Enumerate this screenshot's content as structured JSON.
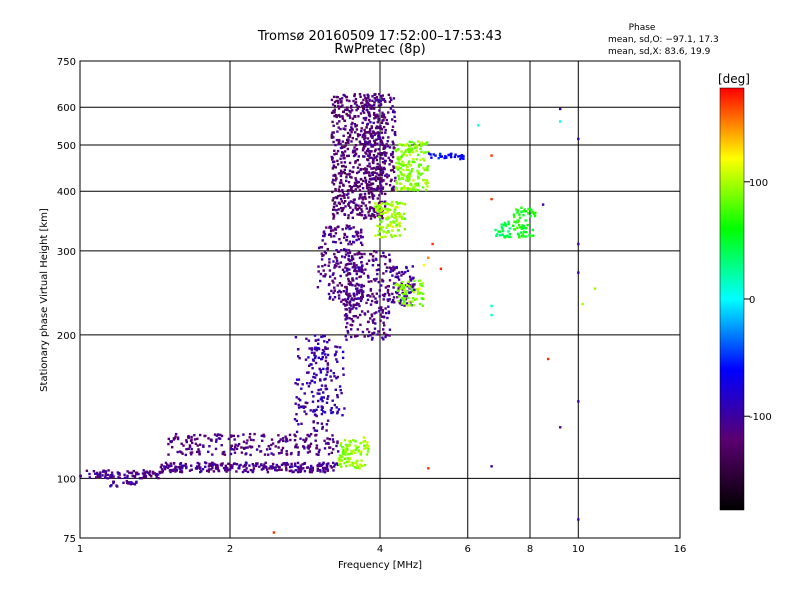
{
  "chart_data": {
    "type": "scatter",
    "title": "Tromsø 20160509 17:52:00–17:53:43",
    "subtitle": "RwPretec (8p)",
    "xlabel": "Frequency [MHz]",
    "ylabel": "Stationary phase Virtual Height [km]",
    "x_scale": "log",
    "y_scale": "log",
    "xlim": [
      1,
      16
    ],
    "ylim": [
      75,
      750
    ],
    "x_ticks": [
      1,
      2,
      4,
      6,
      8,
      10,
      16
    ],
    "y_ticks": [
      75,
      100,
      200,
      300,
      400,
      500,
      600,
      750
    ],
    "grid": true,
    "stats": {
      "heading": "Phase",
      "line_o": "mean, sd,O: −97.1, 17.3",
      "line_x": "mean, sd,X:  83.6, 19.9"
    },
    "colorbar": {
      "label": "[deg]",
      "range": [
        -180,
        180
      ],
      "ticks": [
        100,
        0,
        -100
      ],
      "colors": [
        "#000000",
        "#5a0070",
        "#0000ff",
        "#00ffff",
        "#00ff00",
        "#ffff00",
        "#ff0000"
      ]
    },
    "clusters": [
      {
        "desc": "low trace",
        "x": [
          1.0,
          1.45
        ],
        "y": [
          100,
          104
        ],
        "phase": -110,
        "n": 90
      },
      {
        "desc": "low trace tail",
        "x": [
          1.15,
          1.3
        ],
        "y": [
          96,
          99
        ],
        "phase": -105,
        "n": 20
      },
      {
        "desc": "base rise",
        "x": [
          1.45,
          3.3
        ],
        "y": [
          103,
          108
        ],
        "phase": -108,
        "n": 260
      },
      {
        "desc": "second layer",
        "x": [
          1.5,
          3.3
        ],
        "y": [
          112,
          124
        ],
        "phase": -112,
        "n": 220
      },
      {
        "desc": "oblique rise A",
        "x": [
          2.7,
          3.2
        ],
        "y": [
          125,
          200
        ],
        "phase": -100,
        "n": 120
      },
      {
        "desc": "oblique rise B",
        "x": [
          2.9,
          3.4
        ],
        "y": [
          135,
          190
        ],
        "phase": -95,
        "n": 80
      },
      {
        "desc": "F layer cusp",
        "x": [
          3.0,
          3.7
        ],
        "y": [
          230,
          340
        ],
        "phase": -110,
        "n": 200
      },
      {
        "desc": "F layer wall",
        "x": [
          3.2,
          4.1
        ],
        "y": [
          350,
          640
        ],
        "phase": -120,
        "n": 600
      },
      {
        "desc": "F mid band",
        "x": [
          3.4,
          4.2
        ],
        "y": [
          195,
          300
        ],
        "phase": -112,
        "n": 260
      },
      {
        "desc": "F upper wall",
        "x": [
          3.7,
          4.3
        ],
        "y": [
          400,
          640
        ],
        "phase": -112,
        "n": 200
      },
      {
        "desc": "extra X mid",
        "x": [
          4.2,
          4.7
        ],
        "y": [
          230,
          280
        ],
        "phase": -105,
        "n": 80
      },
      {
        "desc": "X low blob",
        "x": [
          3.3,
          3.8
        ],
        "y": [
          105,
          122
        ],
        "phase": 95,
        "n": 90
      },
      {
        "desc": "X upper branch",
        "x": [
          4.3,
          5.0
        ],
        "y": [
          400,
          510
        ],
        "phase": 92,
        "n": 180
      },
      {
        "desc": "X mid branch",
        "x": [
          3.9,
          4.5
        ],
        "y": [
          320,
          380
        ],
        "phase": 95,
        "n": 110
      },
      {
        "desc": "X F2 trace",
        "x": [
          4.3,
          4.9
        ],
        "y": [
          230,
          260
        ],
        "phase": 88,
        "n": 60
      },
      {
        "desc": "X 7.4 blob",
        "x": [
          7.4,
          8.2
        ],
        "y": [
          320,
          370
        ],
        "phase": 60,
        "n": 60
      },
      {
        "desc": "X 7 blob",
        "x": [
          6.8,
          7.3
        ],
        "y": [
          320,
          345
        ],
        "phase": 40,
        "n": 30
      },
      {
        "desc": "upper right trace",
        "x": [
          5.0,
          5.9
        ],
        "y": [
          465,
          480
        ],
        "phase": -60,
        "n": 30
      }
    ],
    "scattered": [
      {
        "x": 2.45,
        "y": 77,
        "phase": 170
      },
      {
        "x": 6.3,
        "y": 550,
        "phase": 10
      },
      {
        "x": 6.7,
        "y": 475,
        "phase": 170
      },
      {
        "x": 6.7,
        "y": 385,
        "phase": 170
      },
      {
        "x": 6.7,
        "y": 230,
        "phase": 10
      },
      {
        "x": 6.7,
        "y": 220,
        "phase": 10
      },
      {
        "x": 6.7,
        "y": 106,
        "phase": -100
      },
      {
        "x": 8.5,
        "y": 375,
        "phase": -100
      },
      {
        "x": 8.7,
        "y": 178,
        "phase": 170
      },
      {
        "x": 9.2,
        "y": 595,
        "phase": -100
      },
      {
        "x": 9.2,
        "y": 560,
        "phase": 0
      },
      {
        "x": 9.2,
        "y": 128,
        "phase": -110
      },
      {
        "x": 10.0,
        "y": 515,
        "phase": -100
      },
      {
        "x": 10.0,
        "y": 310,
        "phase": -100
      },
      {
        "x": 10.0,
        "y": 270,
        "phase": -100
      },
      {
        "x": 10.0,
        "y": 145,
        "phase": -100
      },
      {
        "x": 10.0,
        "y": 82,
        "phase": -100
      },
      {
        "x": 10.2,
        "y": 232,
        "phase": 95
      },
      {
        "x": 10.8,
        "y": 250,
        "phase": 95
      },
      {
        "x": 5.1,
        "y": 310,
        "phase": 170
      },
      {
        "x": 5.3,
        "y": 275,
        "phase": 170
      },
      {
        "x": 5.0,
        "y": 290,
        "phase": 150
      },
      {
        "x": 5.0,
        "y": 105,
        "phase": 170
      },
      {
        "x": 4.8,
        "y": 250,
        "phase": 120
      },
      {
        "x": 4.9,
        "y": 280,
        "phase": 120
      }
    ]
  }
}
